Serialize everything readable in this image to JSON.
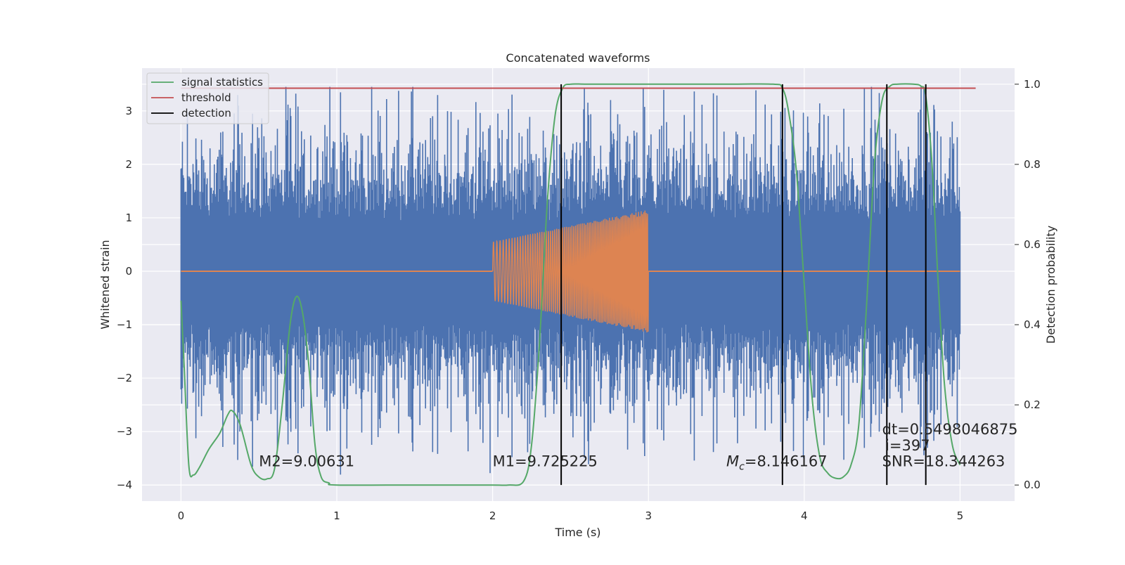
{
  "chart_data": {
    "type": "line",
    "title": "Concatenated waveforms",
    "xlabel": "Time (s)",
    "ylabel": "Whitened strain",
    "ylabel_right": "Detection probability",
    "xlim": [
      -0.25,
      5.35
    ],
    "ylim": [
      -4.3,
      3.8
    ],
    "ylim_right": [
      -0.04,
      1.04
    ],
    "x_ticks": [
      0,
      1,
      2,
      3,
      4,
      5
    ],
    "y_ticks": [
      -4,
      -3,
      -2,
      -1,
      0,
      1,
      2,
      3
    ],
    "y_ticks_right": [
      0.0,
      0.2,
      0.4,
      0.6,
      0.8,
      1.0
    ],
    "x_tick_labels": [
      "0",
      "1",
      "2",
      "3",
      "4",
      "5"
    ],
    "y_tick_labels": [
      "−4",
      "−3",
      "−2",
      "−1",
      "0",
      "1",
      "2",
      "3"
    ],
    "y_tick_labels_right": [
      "0.0",
      "0.2",
      "0.4",
      "0.6",
      "0.8",
      "1.0"
    ],
    "grid": true,
    "legend_position": "top-left",
    "legend": [
      {
        "label": "signal statistics",
        "color": "#55a868",
        "kind": "line"
      },
      {
        "label": "threshold",
        "color": "#c44e52",
        "kind": "line"
      },
      {
        "label": "detection",
        "color": "#000000",
        "kind": "line"
      }
    ],
    "series": [
      {
        "name": "",
        "kind": "noise",
        "color": "#4c72b0",
        "axis": "left",
        "x_range": [
          0,
          5
        ],
        "core_amplitude": 1.0,
        "peak_range": [
          -3.9,
          3.45
        ]
      },
      {
        "name": "",
        "kind": "chirp",
        "color": "#dd8452",
        "axis": "left",
        "x_range": [
          0,
          5
        ],
        "chirp_start": 2.0,
        "chirp_end": 3.0,
        "amp_start": 0.55,
        "amp_end": 1.15
      },
      {
        "name": "signal statistics",
        "kind": "line",
        "color": "#55a868",
        "axis": "right",
        "x": [
          0,
          0.02,
          0.05,
          0.08,
          0.12,
          0.18,
          0.25,
          0.3,
          0.33,
          0.38,
          0.45,
          0.5,
          0.55,
          0.6,
          0.65,
          0.7,
          0.74,
          0.78,
          0.82,
          0.86,
          0.9,
          0.95,
          1.0,
          1.5,
          2.0,
          2.1,
          2.2,
          2.25,
          2.3,
          2.35,
          2.4,
          2.45,
          2.5,
          2.6,
          2.8,
          3.5,
          3.8,
          3.86,
          3.9,
          3.95,
          4.0,
          4.05,
          4.1,
          4.15,
          4.2,
          4.25,
          4.3,
          4.35,
          4.4,
          4.45,
          4.5,
          4.55,
          4.6,
          4.7,
          4.75,
          4.78,
          4.82,
          4.86,
          4.9,
          4.95,
          5.0
        ],
        "y": [
          0.46,
          0.3,
          0.05,
          0.025,
          0.045,
          0.09,
          0.13,
          0.175,
          0.185,
          0.15,
          0.05,
          0.02,
          0.015,
          0.04,
          0.2,
          0.4,
          0.47,
          0.43,
          0.3,
          0.1,
          0.02,
          0.005,
          0.0,
          0.0,
          0.0,
          0.0,
          0.01,
          0.1,
          0.35,
          0.7,
          0.92,
          0.99,
          1.0,
          1.0,
          1.0,
          1.0,
          1.0,
          0.99,
          0.93,
          0.78,
          0.5,
          0.22,
          0.07,
          0.03,
          0.017,
          0.02,
          0.05,
          0.15,
          0.45,
          0.8,
          0.96,
          0.995,
          1.0,
          1.0,
          0.995,
          0.97,
          0.8,
          0.5,
          0.25,
          0.1,
          0.05
        ]
      },
      {
        "name": "threshold",
        "kind": "line",
        "color": "#c44e52",
        "axis": "right",
        "x": [
          0,
          5.1
        ],
        "y": [
          0.99,
          0.99
        ]
      },
      {
        "name": "detection",
        "kind": "vlines",
        "color": "#000000",
        "axis": "right",
        "x": [
          2.44,
          3.86,
          4.53,
          4.78
        ],
        "y_range": [
          0.0,
          1.0
        ]
      }
    ],
    "annotations": [
      {
        "text": "M2=9.00631",
        "x": 0.5,
        "y": -3.65
      },
      {
        "text": "M1=9.725225",
        "x": 2.0,
        "y": -3.65
      },
      {
        "text_main": "M",
        "text_sub": "c",
        "text_rest": "=8.146167",
        "x": 3.5,
        "y": -3.65
      },
      {
        "text": "SNR=18.344263",
        "x": 4.5,
        "y": -3.65
      },
      {
        "text": "i=397",
        "x": 4.52,
        "y": -3.35
      },
      {
        "text": "dt=0.5498046875",
        "x": 4.5,
        "y": -3.05
      }
    ]
  }
}
